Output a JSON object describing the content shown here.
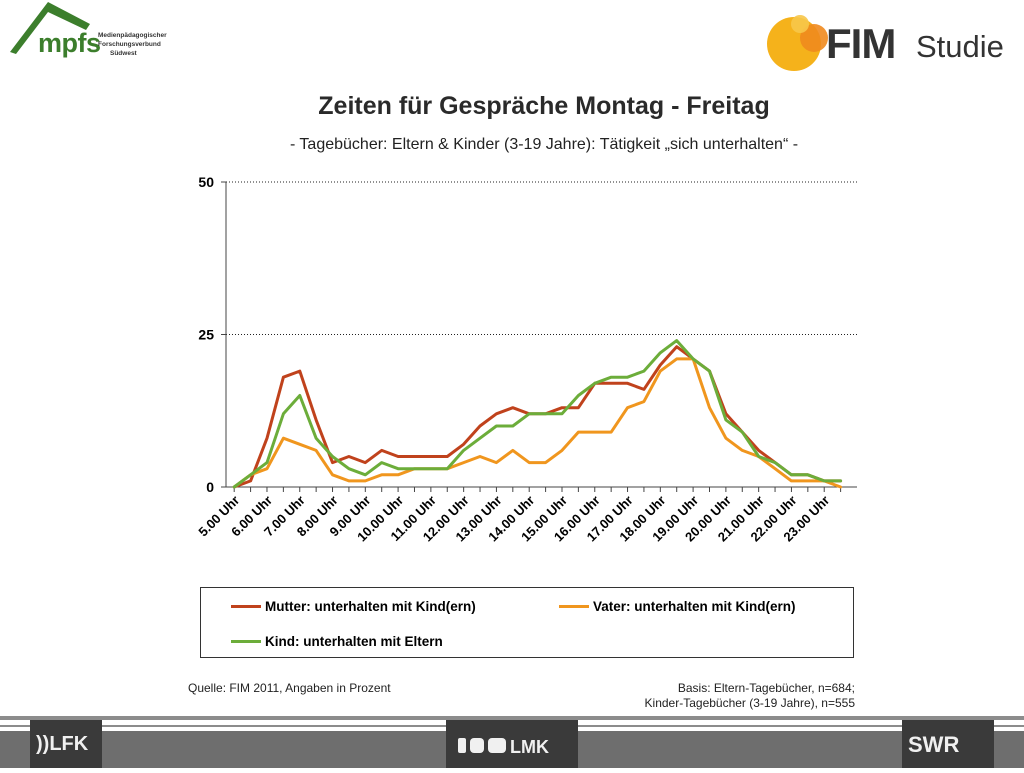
{
  "header": {
    "mpfs_logo_text": "mpfs",
    "mpfs_sub_lines": [
      "Medienpädagogischer",
      "Forschungsverbund",
      "Südwest"
    ],
    "fim_logo_text": "FIM",
    "fim_logo_studie": "Studie"
  },
  "title": "Zeiten für Gespräche Montag - Freitag",
  "subtitle": "- Tagebücher: Eltern & Kinder (3-19 Jahre): Tätigkeit „sich unterhalten“ -",
  "chart_data": {
    "type": "line",
    "ylim": [
      0,
      50
    ],
    "yticks": [
      0,
      25,
      50
    ],
    "grid": "dotted horizontal at 25 and 50",
    "x_tick_labels": [
      "5.00 Uhr",
      "6.00 Uhr",
      "7.00 Uhr",
      "8.00 Uhr",
      "9.00 Uhr",
      "10.00 Uhr",
      "11.00 Uhr",
      "12.00 Uhr",
      "13.00 Uhr",
      "14.00 Uhr",
      "15.00 Uhr",
      "16.00 Uhr",
      "17.00 Uhr",
      "18.00 Uhr",
      "19.00 Uhr",
      "20.00 Uhr",
      "21.00 Uhr",
      "22.00 Uhr",
      "23.00 Uhr"
    ],
    "x": [
      5,
      5.5,
      6,
      6.5,
      7,
      7.5,
      8,
      8.5,
      9,
      9.5,
      10,
      10.5,
      11,
      11.5,
      12,
      12.5,
      13,
      13.5,
      14,
      14.5,
      15,
      15.5,
      16,
      16.5,
      17,
      17.5,
      18,
      18.5,
      19,
      19.5,
      20,
      20.5,
      21,
      21.5,
      22,
      22.5,
      23,
      23.5
    ],
    "legend_position": "bottom",
    "series": [
      {
        "name": "Mutter: unterhalten mit Kind(ern)",
        "color": "#c0421c",
        "values": [
          0,
          1,
          8,
          18,
          19,
          11,
          4,
          5,
          4,
          6,
          5,
          5,
          5,
          5,
          7,
          10,
          12,
          13,
          12,
          12,
          13,
          13,
          17,
          17,
          17,
          16,
          20,
          23,
          21,
          19,
          12,
          9,
          6,
          4,
          2,
          2,
          1,
          1
        ]
      },
      {
        "name": "Vater: unterhalten mit Kind(ern)",
        "color": "#f0961e",
        "values": [
          0,
          2,
          3,
          8,
          7,
          6,
          2,
          1,
          1,
          2,
          2,
          3,
          3,
          3,
          4,
          5,
          4,
          6,
          4,
          4,
          6,
          9,
          9,
          9,
          13,
          14,
          19,
          21,
          21,
          13,
          8,
          6,
          5,
          3,
          1,
          1,
          1,
          0
        ]
      },
      {
        "name": "Kind: unterhalten mit Eltern",
        "color": "#6cad3a",
        "values": [
          0,
          2,
          4,
          12,
          15,
          8,
          5,
          3,
          2,
          4,
          3,
          3,
          3,
          3,
          6,
          8,
          10,
          10,
          12,
          12,
          12,
          15,
          17,
          18,
          18,
          19,
          22,
          24,
          21,
          19,
          11,
          9,
          5,
          4,
          2,
          2,
          1,
          1
        ]
      }
    ]
  },
  "legend": {
    "mutter": "Mutter: unterhalten mit Kind(ern)",
    "vater": "Vater: unterhalten mit Kind(ern)",
    "kind": "Kind: unterhalten mit Eltern"
  },
  "source": "Quelle: FIM 2011, Angaben in Prozent",
  "basis": [
    "Basis: Eltern-Tagebücher, n=684;",
    "Kinder-Tagebücher (3-19 Jahre), n=555"
  ],
  "footer": {
    "lfk": "))LFK",
    "lmk": "LMK",
    "swr": "SWR"
  },
  "colors": {
    "mpfs_green": "#3c7e2c",
    "fim_yellow": "#f5b21b",
    "fim_orange": "#f08a1e",
    "footer_gray": "#6e6e6e"
  }
}
